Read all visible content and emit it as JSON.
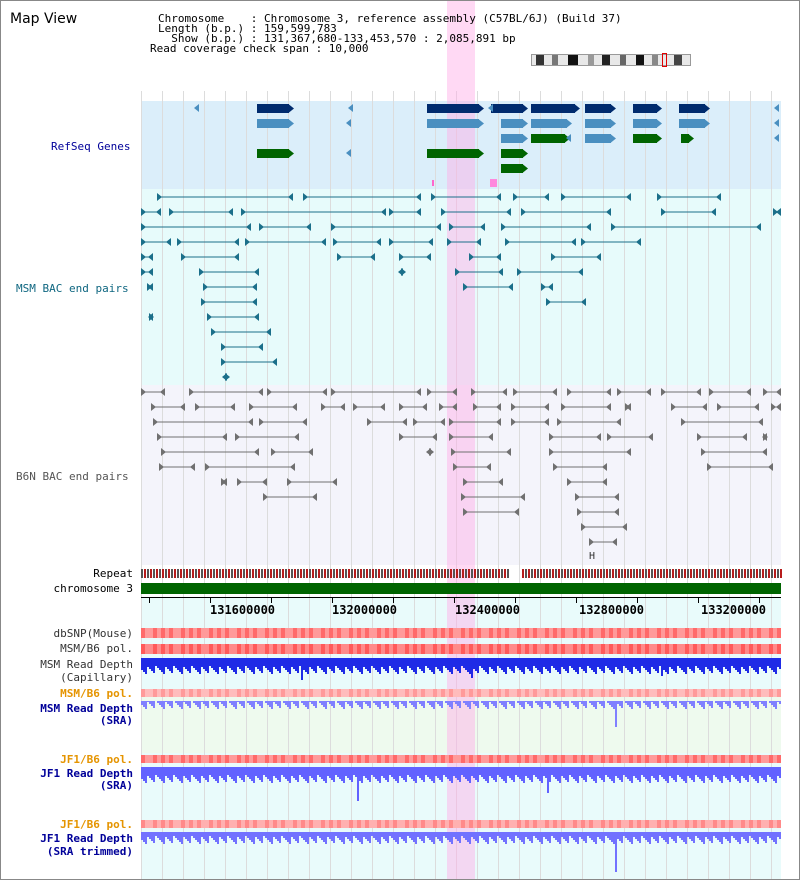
{
  "header": {
    "title": "Map View",
    "info_line1": "Chromosome    : Chromosome 3, reference assembly (C57BL/6J) (Build 37)",
    "info_line2": "Length (b.p.) : 159,599,783",
    "info_line3": "  Show (b.p.) : 131,367,680-133,453,570 : 2,085,891 bp",
    "info_line4": "Read coverage check span : 10,000"
  },
  "tracks": {
    "refseq": "RefSeq Genes",
    "msm_bac": "MSM BAC end pairs",
    "b6n_bac": "B6N BAC end pairs",
    "repeat": "Repeat",
    "chromosome": "chromosome 3",
    "dbsnp": "dbSNP(Mouse)",
    "msm_b6_pol_1": "MSM/B6 pol.",
    "msm_depth_cap_1": "MSM Read Depth",
    "msm_depth_cap_2": "(Capillary)",
    "msm_b6_pol_2": "MSM/B6 pol.",
    "msm_depth_sra_1": "MSM Read Depth",
    "msm_depth_sra_2": "(SRA)",
    "jf1_b6_pol_1": "JF1/B6 pol.",
    "jf1_depth_sra_1": "JF1 Read Depth",
    "jf1_depth_sra_2": "(SRA)",
    "jf1_b6_pol_2": "JF1/B6 pol.",
    "jf1_depth_trim_1": "JF1 Read Depth",
    "jf1_depth_trim_2": "(SRA trimmed)"
  },
  "axis": {
    "ticks": [
      "131600000",
      "132000000",
      "132400000",
      "132800000",
      "133200000"
    ]
  },
  "colors": {
    "gene_dark": "#002b6e",
    "gene_mid": "#4a8fc0",
    "gene_green": "#006400",
    "msm_line": "#1b6f8a",
    "b6n_line": "#707070",
    "refseq_bg": "#dbeefa",
    "msm_bg": "#e7fbfb",
    "b6n_bg": "#f4f4fb",
    "label_navy": "#000099",
    "label_orange": "#e59400",
    "highlight": "#ffaae6"
  }
}
